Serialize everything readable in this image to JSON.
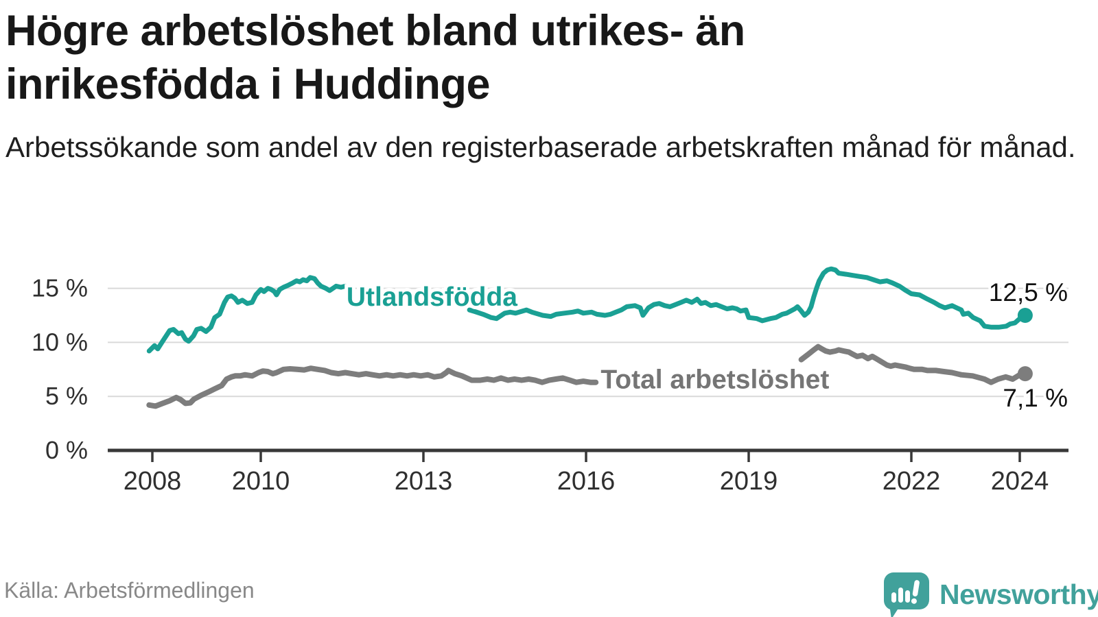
{
  "title": {
    "line1": "Högre arbetslöshet bland utrikes- än",
    "line2": "inrikesfödda i Huddinge"
  },
  "subtitle": "Arbetssökande som andel av den registerbaserade arbetskraften månad för månad.",
  "source": "Källa: Arbetsförmedlingen",
  "branding": {
    "name": "Newsworthy"
  },
  "colors": {
    "accent_teal": "#1aa094",
    "brand_teal": "#41a19b",
    "line_gray": "#7d7d7d",
    "label_gray": "#757575",
    "grid": "#d9d9d9",
    "axis": "#383838",
    "tick_text": "#2f2f2f",
    "value_text": "#111111"
  },
  "chart_data": {
    "type": "line",
    "title": "Högre arbetslöshet bland utrikes- än inrikesfödda i Huddinge",
    "xlabel": "",
    "ylabel": "",
    "unit": "%",
    "grid": true,
    "x_ticks": [
      2008,
      2010,
      2013,
      2016,
      2019,
      2022,
      2024
    ],
    "y_ticks": [
      0,
      5,
      10,
      15
    ],
    "y_tick_suffix": " %",
    "ylim": [
      0,
      17.5
    ],
    "xlim": [
      2007.1,
      2024.9
    ],
    "series": [
      {
        "name": "Utlandsfödda",
        "color": "#1aa094",
        "end_value": 12.5,
        "end_label": "12,5 %",
        "end_label_position": "above",
        "inline_label": {
          "text": "Utlandsfödda",
          "year": 2011.58,
          "value": 13.4
        },
        "segments": [
          [
            [
              2007.94,
              9.2
            ],
            [
              2008.04,
              9.7
            ],
            [
              2008.1,
              9.4
            ],
            [
              2008.19,
              10.1
            ],
            [
              2008.32,
              11.1
            ],
            [
              2008.39,
              11.2
            ],
            [
              2008.48,
              10.8
            ],
            [
              2008.54,
              10.9
            ],
            [
              2008.61,
              10.3
            ],
            [
              2008.67,
              10.1
            ],
            [
              2008.76,
              10.6
            ],
            [
              2008.82,
              11.2
            ],
            [
              2008.9,
              11.3
            ],
            [
              2008.99,
              11.0
            ],
            [
              2009.08,
              11.4
            ],
            [
              2009.15,
              12.3
            ],
            [
              2009.24,
              12.6
            ],
            [
              2009.33,
              13.7
            ],
            [
              2009.39,
              14.2
            ],
            [
              2009.46,
              14.3
            ],
            [
              2009.52,
              14.1
            ],
            [
              2009.58,
              13.7
            ],
            [
              2009.66,
              13.9
            ],
            [
              2009.75,
              13.6
            ],
            [
              2009.84,
              13.7
            ],
            [
              2009.91,
              14.4
            ],
            [
              2010.0,
              14.9
            ],
            [
              2010.06,
              14.7
            ],
            [
              2010.13,
              15.0
            ],
            [
              2010.19,
              14.9
            ],
            [
              2010.25,
              14.7
            ],
            [
              2010.29,
              14.4
            ],
            [
              2010.35,
              14.9
            ],
            [
              2010.42,
              15.1
            ],
            [
              2010.51,
              15.3
            ],
            [
              2010.59,
              15.5
            ],
            [
              2010.66,
              15.7
            ],
            [
              2010.72,
              15.6
            ],
            [
              2010.78,
              15.8
            ],
            [
              2010.85,
              15.7
            ],
            [
              2010.91,
              16.0
            ],
            [
              2010.99,
              15.9
            ],
            [
              2011.05,
              15.5
            ],
            [
              2011.11,
              15.2
            ],
            [
              2011.2,
              15.0
            ],
            [
              2011.27,
              14.8
            ],
            [
              2011.33,
              15.0
            ],
            [
              2011.39,
              15.2
            ],
            [
              2011.48,
              15.1
            ],
            [
              2011.56,
              15.2
            ]
          ],
          [
            [
              2013.85,
              13.0
            ],
            [
              2013.95,
              12.85
            ],
            [
              2014.1,
              12.6
            ],
            [
              2014.25,
              12.3
            ],
            [
              2014.35,
              12.2
            ],
            [
              2014.5,
              12.7
            ],
            [
              2014.6,
              12.8
            ],
            [
              2014.7,
              12.7
            ],
            [
              2014.9,
              13.0
            ],
            [
              2015.0,
              12.8
            ],
            [
              2015.2,
              12.5
            ],
            [
              2015.35,
              12.4
            ],
            [
              2015.45,
              12.6
            ],
            [
              2015.6,
              12.7
            ],
            [
              2015.75,
              12.8
            ],
            [
              2015.85,
              12.9
            ],
            [
              2015.95,
              12.7
            ],
            [
              2016.1,
              12.8
            ],
            [
              2016.2,
              12.6
            ],
            [
              2016.35,
              12.5
            ],
            [
              2016.45,
              12.6
            ],
            [
              2016.55,
              12.8
            ],
            [
              2016.65,
              13.0
            ],
            [
              2016.75,
              13.3
            ],
            [
              2016.9,
              13.4
            ],
            [
              2017.0,
              13.2
            ],
            [
              2017.05,
              12.5
            ],
            [
              2017.15,
              13.2
            ],
            [
              2017.25,
              13.5
            ],
            [
              2017.35,
              13.6
            ],
            [
              2017.45,
              13.4
            ],
            [
              2017.55,
              13.3
            ],
            [
              2017.65,
              13.5
            ],
            [
              2017.75,
              13.7
            ],
            [
              2017.85,
              13.9
            ],
            [
              2017.95,
              13.7
            ],
            [
              2018.05,
              14.0
            ],
            [
              2018.12,
              13.6
            ],
            [
              2018.2,
              13.7
            ],
            [
              2018.3,
              13.4
            ],
            [
              2018.4,
              13.5
            ],
            [
              2018.5,
              13.3
            ],
            [
              2018.6,
              13.1
            ],
            [
              2018.7,
              13.2
            ],
            [
              2018.78,
              13.1
            ],
            [
              2018.85,
              12.9
            ],
            [
              2018.95,
              13.0
            ],
            [
              2019.0,
              12.3
            ],
            [
              2019.15,
              12.2
            ],
            [
              2019.25,
              12.0
            ],
            [
              2019.4,
              12.2
            ],
            [
              2019.5,
              12.3
            ],
            [
              2019.62,
              12.6
            ],
            [
              2019.7,
              12.7
            ],
            [
              2019.85,
              13.1
            ],
            [
              2019.9,
              13.3
            ],
            [
              2019.97,
              12.9
            ],
            [
              2020.03,
              12.5
            ],
            [
              2020.1,
              12.8
            ],
            [
              2020.15,
              13.3
            ],
            [
              2020.2,
              14.2
            ],
            [
              2020.25,
              15.0
            ],
            [
              2020.3,
              15.7
            ],
            [
              2020.38,
              16.4
            ],
            [
              2020.45,
              16.7
            ],
            [
              2020.52,
              16.8
            ],
            [
              2020.6,
              16.7
            ],
            [
              2020.66,
              16.4
            ],
            [
              2020.8,
              16.3
            ],
            [
              2020.92,
              16.2
            ],
            [
              2021.05,
              16.1
            ],
            [
              2021.18,
              16.0
            ],
            [
              2021.3,
              15.8
            ],
            [
              2021.42,
              15.6
            ],
            [
              2021.55,
              15.7
            ],
            [
              2021.65,
              15.5
            ],
            [
              2021.78,
              15.2
            ],
            [
              2021.9,
              14.8
            ],
            [
              2022.0,
              14.5
            ],
            [
              2022.15,
              14.4
            ],
            [
              2022.3,
              14.0
            ],
            [
              2022.42,
              13.7
            ],
            [
              2022.52,
              13.4
            ],
            [
              2022.62,
              13.2
            ],
            [
              2022.75,
              13.4
            ],
            [
              2022.92,
              13.0
            ],
            [
              2022.96,
              12.6
            ],
            [
              2023.05,
              12.7
            ],
            [
              2023.14,
              12.3
            ],
            [
              2023.27,
              12.0
            ],
            [
              2023.35,
              11.5
            ],
            [
              2023.48,
              11.4
            ],
            [
              2023.61,
              11.4
            ],
            [
              2023.75,
              11.5
            ],
            [
              2023.82,
              11.7
            ],
            [
              2023.91,
              11.8
            ],
            [
              2024.0,
              12.2
            ],
            [
              2024.1,
              12.5
            ]
          ]
        ]
      },
      {
        "name": "Total arbetslöshet",
        "color": "#7d7d7d",
        "end_value": 7.1,
        "end_label": "7,1 %",
        "end_label_position": "below",
        "inline_label": {
          "text": "Total arbetslöshet",
          "year": 2016.27,
          "value": 5.75
        },
        "segments": [
          [
            [
              2007.94,
              4.2
            ],
            [
              2008.06,
              4.1
            ],
            [
              2008.19,
              4.35
            ],
            [
              2008.32,
              4.6
            ],
            [
              2008.44,
              4.9
            ],
            [
              2008.52,
              4.7
            ],
            [
              2008.61,
              4.35
            ],
            [
              2008.7,
              4.4
            ],
            [
              2008.77,
              4.75
            ],
            [
              2008.9,
              5.1
            ],
            [
              2009.03,
              5.4
            ],
            [
              2009.15,
              5.7
            ],
            [
              2009.28,
              6.0
            ],
            [
              2009.37,
              6.6
            ],
            [
              2009.46,
              6.8
            ],
            [
              2009.53,
              6.9
            ],
            [
              2009.62,
              6.9
            ],
            [
              2009.71,
              7.0
            ],
            [
              2009.84,
              6.9
            ],
            [
              2009.96,
              7.2
            ],
            [
              2010.04,
              7.35
            ],
            [
              2010.13,
              7.3
            ],
            [
              2010.22,
              7.1
            ],
            [
              2010.29,
              7.2
            ],
            [
              2010.42,
              7.5
            ],
            [
              2010.54,
              7.55
            ],
            [
              2010.67,
              7.5
            ],
            [
              2010.8,
              7.45
            ],
            [
              2010.92,
              7.6
            ],
            [
              2011.05,
              7.5
            ],
            [
              2011.18,
              7.4
            ],
            [
              2011.3,
              7.2
            ],
            [
              2011.43,
              7.1
            ],
            [
              2011.56,
              7.2
            ],
            [
              2011.68,
              7.1
            ],
            [
              2011.81,
              7.0
            ],
            [
              2011.94,
              7.1
            ],
            [
              2012.06,
              7.0
            ],
            [
              2012.19,
              6.9
            ],
            [
              2012.32,
              7.0
            ],
            [
              2012.44,
              6.9
            ],
            [
              2012.57,
              7.0
            ],
            [
              2012.7,
              6.9
            ],
            [
              2012.82,
              7.0
            ],
            [
              2012.95,
              6.9
            ],
            [
              2013.08,
              7.0
            ],
            [
              2013.2,
              6.8
            ],
            [
              2013.33,
              6.9
            ],
            [
              2013.42,
              7.2
            ],
            [
              2013.46,
              7.4
            ],
            [
              2013.58,
              7.1
            ],
            [
              2013.71,
              6.9
            ],
            [
              2013.89,
              6.5
            ],
            [
              2014.05,
              6.5
            ],
            [
              2014.18,
              6.6
            ],
            [
              2014.3,
              6.5
            ],
            [
              2014.43,
              6.7
            ],
            [
              2014.56,
              6.5
            ],
            [
              2014.68,
              6.6
            ],
            [
              2014.81,
              6.5
            ],
            [
              2014.94,
              6.6
            ],
            [
              2015.06,
              6.5
            ],
            [
              2015.19,
              6.3
            ],
            [
              2015.32,
              6.5
            ],
            [
              2015.44,
              6.6
            ],
            [
              2015.57,
              6.7
            ],
            [
              2015.7,
              6.5
            ],
            [
              2015.82,
              6.3
            ],
            [
              2015.95,
              6.4
            ],
            [
              2016.08,
              6.3
            ],
            [
              2016.18,
              6.3
            ]
          ],
          [
            [
              2019.97,
              8.4
            ],
            [
              2020.1,
              8.9
            ],
            [
              2020.2,
              9.3
            ],
            [
              2020.28,
              9.6
            ],
            [
              2020.35,
              9.4
            ],
            [
              2020.42,
              9.2
            ],
            [
              2020.5,
              9.1
            ],
            [
              2020.6,
              9.2
            ],
            [
              2020.66,
              9.3
            ],
            [
              2020.75,
              9.2
            ],
            [
              2020.85,
              9.1
            ],
            [
              2020.92,
              8.9
            ],
            [
              2021.0,
              8.7
            ],
            [
              2021.1,
              8.8
            ],
            [
              2021.2,
              8.5
            ],
            [
              2021.28,
              8.7
            ],
            [
              2021.35,
              8.5
            ],
            [
              2021.45,
              8.2
            ],
            [
              2021.55,
              7.9
            ],
            [
              2021.62,
              7.8
            ],
            [
              2021.7,
              7.9
            ],
            [
              2021.8,
              7.8
            ],
            [
              2021.9,
              7.7
            ],
            [
              2021.97,
              7.6
            ],
            [
              2022.05,
              7.5
            ],
            [
              2022.2,
              7.5
            ],
            [
              2022.3,
              7.4
            ],
            [
              2022.45,
              7.4
            ],
            [
              2022.6,
              7.3
            ],
            [
              2022.75,
              7.2
            ],
            [
              2022.92,
              7.0
            ],
            [
              2023.13,
              6.9
            ],
            [
              2023.35,
              6.6
            ],
            [
              2023.47,
              6.3
            ],
            [
              2023.6,
              6.6
            ],
            [
              2023.74,
              6.8
            ],
            [
              2023.87,
              6.6
            ],
            [
              2024.0,
              7.0
            ],
            [
              2024.1,
              7.1
            ]
          ]
        ]
      }
    ]
  }
}
